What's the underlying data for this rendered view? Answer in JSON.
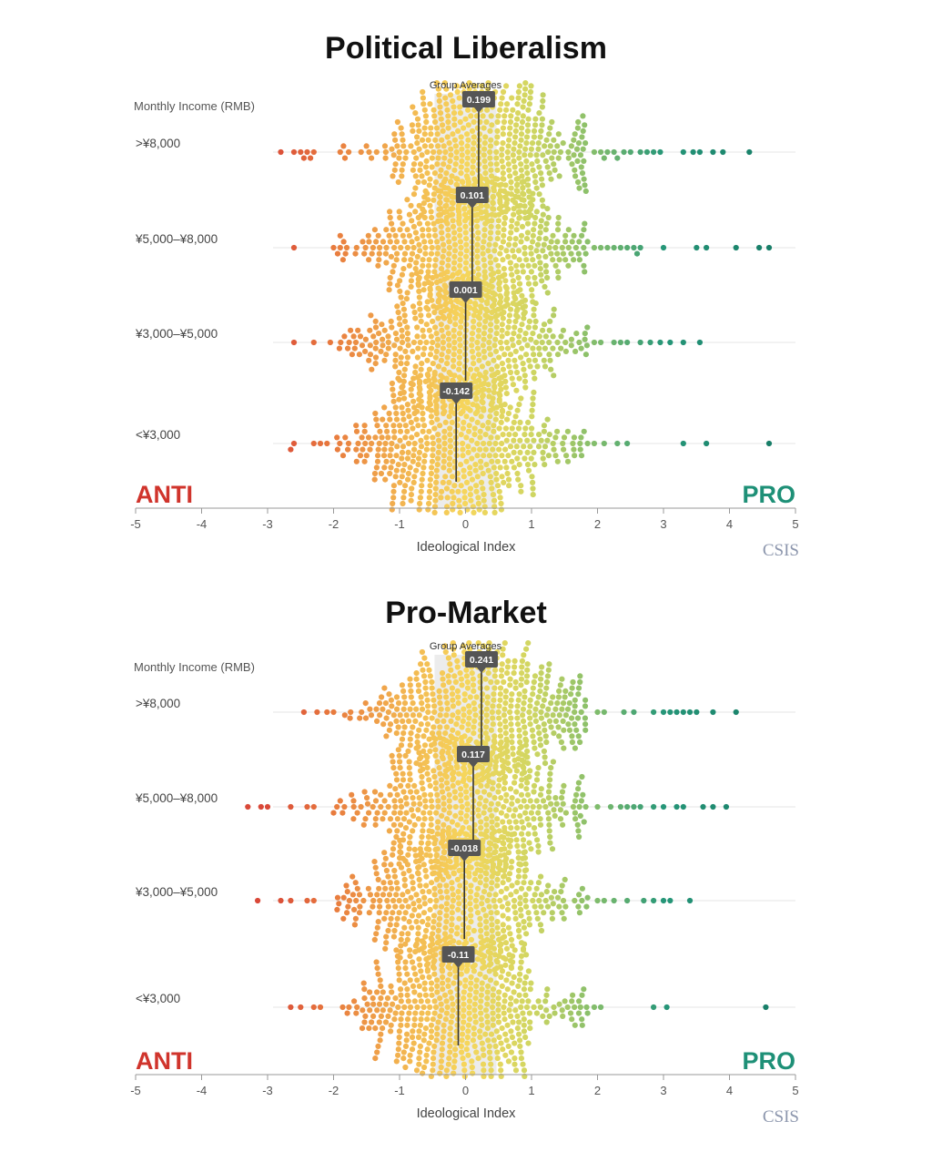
{
  "chart_data": [
    {
      "type": "scatter",
      "title": "Political Liberalism",
      "group_label": "Monthly Income (RMB)",
      "band_label": "Group Averages",
      "xlabel": "Ideological Index",
      "xlim": [
        -5,
        5
      ],
      "xticks": [
        "-5",
        "-4",
        "-3",
        "-2",
        "-1",
        "0",
        "1",
        "2",
        "3",
        "4",
        "5"
      ],
      "band": [
        -0.47,
        0.47
      ],
      "anti_label": "ANTI",
      "pro_label": "PRO",
      "source": "CSIS",
      "series": [
        {
          "name": ">¥8,000",
          "mean": 0.199,
          "mean_label": "0.199",
          "outliers": [
            -2.8,
            -2.6,
            -2.5,
            -2.45,
            -2.4,
            -2.35,
            -2.3,
            -1.85,
            1.95,
            2.05,
            2.1,
            2.15,
            2.25,
            2.3,
            2.4,
            2.5,
            2.65,
            2.75,
            2.85,
            2.95,
            3.3,
            3.45,
            3.55,
            3.75,
            3.9,
            4.3
          ]
        },
        {
          "name": "¥5,000–¥8,000",
          "mean": 0.101,
          "mean_label": "0.101",
          "outliers": [
            -2.6,
            -2.0,
            -1.9,
            1.85,
            1.95,
            2.05,
            2.15,
            2.25,
            2.35,
            2.45,
            2.55,
            2.6,
            2.65,
            3.0,
            3.5,
            3.65,
            4.1,
            4.45,
            4.6
          ]
        },
        {
          "name": "¥3,000–¥5,000",
          "mean": 0.001,
          "mean_label": "0.001",
          "outliers": [
            -2.6,
            -2.3,
            -2.05,
            1.95,
            2.05,
            2.25,
            2.35,
            2.45,
            2.65,
            2.8,
            2.95,
            3.1,
            3.3,
            3.55
          ]
        },
        {
          "name": "<¥3,000",
          "mean": -0.142,
          "mean_label": "-0.142",
          "outliers": [
            -2.65,
            -2.6,
            -2.3,
            -2.2,
            -2.1,
            1.55,
            1.65,
            1.75,
            1.85,
            1.95,
            2.1,
            2.3,
            2.45,
            3.3,
            3.65,
            4.6
          ]
        }
      ]
    },
    {
      "type": "scatter",
      "title": "Pro-Market",
      "group_label": "Monthly Income (RMB)",
      "band_label": "Group Averages",
      "xlabel": "Ideological Index",
      "xlim": [
        -5,
        5
      ],
      "xticks": [
        "-5",
        "-4",
        "-3",
        "-2",
        "-1",
        "0",
        "1",
        "2",
        "3",
        "4",
        "5"
      ],
      "band": [
        -0.47,
        0.47
      ],
      "anti_label": "ANTI",
      "pro_label": "PRO",
      "source": "CSIS",
      "series": [
        {
          "name": ">¥8,000",
          "mean": 0.241,
          "mean_label": "0.241",
          "outliers": [
            -2.45,
            -2.25,
            -2.1,
            -2.0,
            2.0,
            2.1,
            2.4,
            2.55,
            2.85,
            3.0,
            3.1,
            3.2,
            3.3,
            3.4,
            3.5,
            3.75,
            4.1
          ]
        },
        {
          "name": "¥5,000–¥8,000",
          "mean": 0.117,
          "mean_label": "0.117",
          "outliers": [
            -3.3,
            -3.1,
            -3.0,
            -2.65,
            -2.4,
            -2.3,
            -2.0,
            -1.9,
            2.0,
            2.2,
            2.35,
            2.45,
            2.55,
            2.65,
            2.85,
            3.0,
            3.2,
            3.3,
            3.6,
            3.75,
            3.95
          ]
        },
        {
          "name": "¥3,000–¥5,000",
          "mean": -0.018,
          "mean_label": "-0.018",
          "outliers": [
            -3.15,
            -2.8,
            -2.65,
            -2.4,
            -2.3,
            1.85,
            2.0,
            2.1,
            2.25,
            2.45,
            2.7,
            2.85,
            3.0,
            3.1,
            3.4
          ]
        },
        {
          "name": "<¥3,000",
          "mean": -0.11,
          "mean_label": "-0.11",
          "outliers": [
            -2.65,
            -2.5,
            -2.3,
            -2.2,
            1.85,
            1.95,
            2.05,
            2.85,
            3.05,
            4.55
          ]
        }
      ]
    }
  ]
}
